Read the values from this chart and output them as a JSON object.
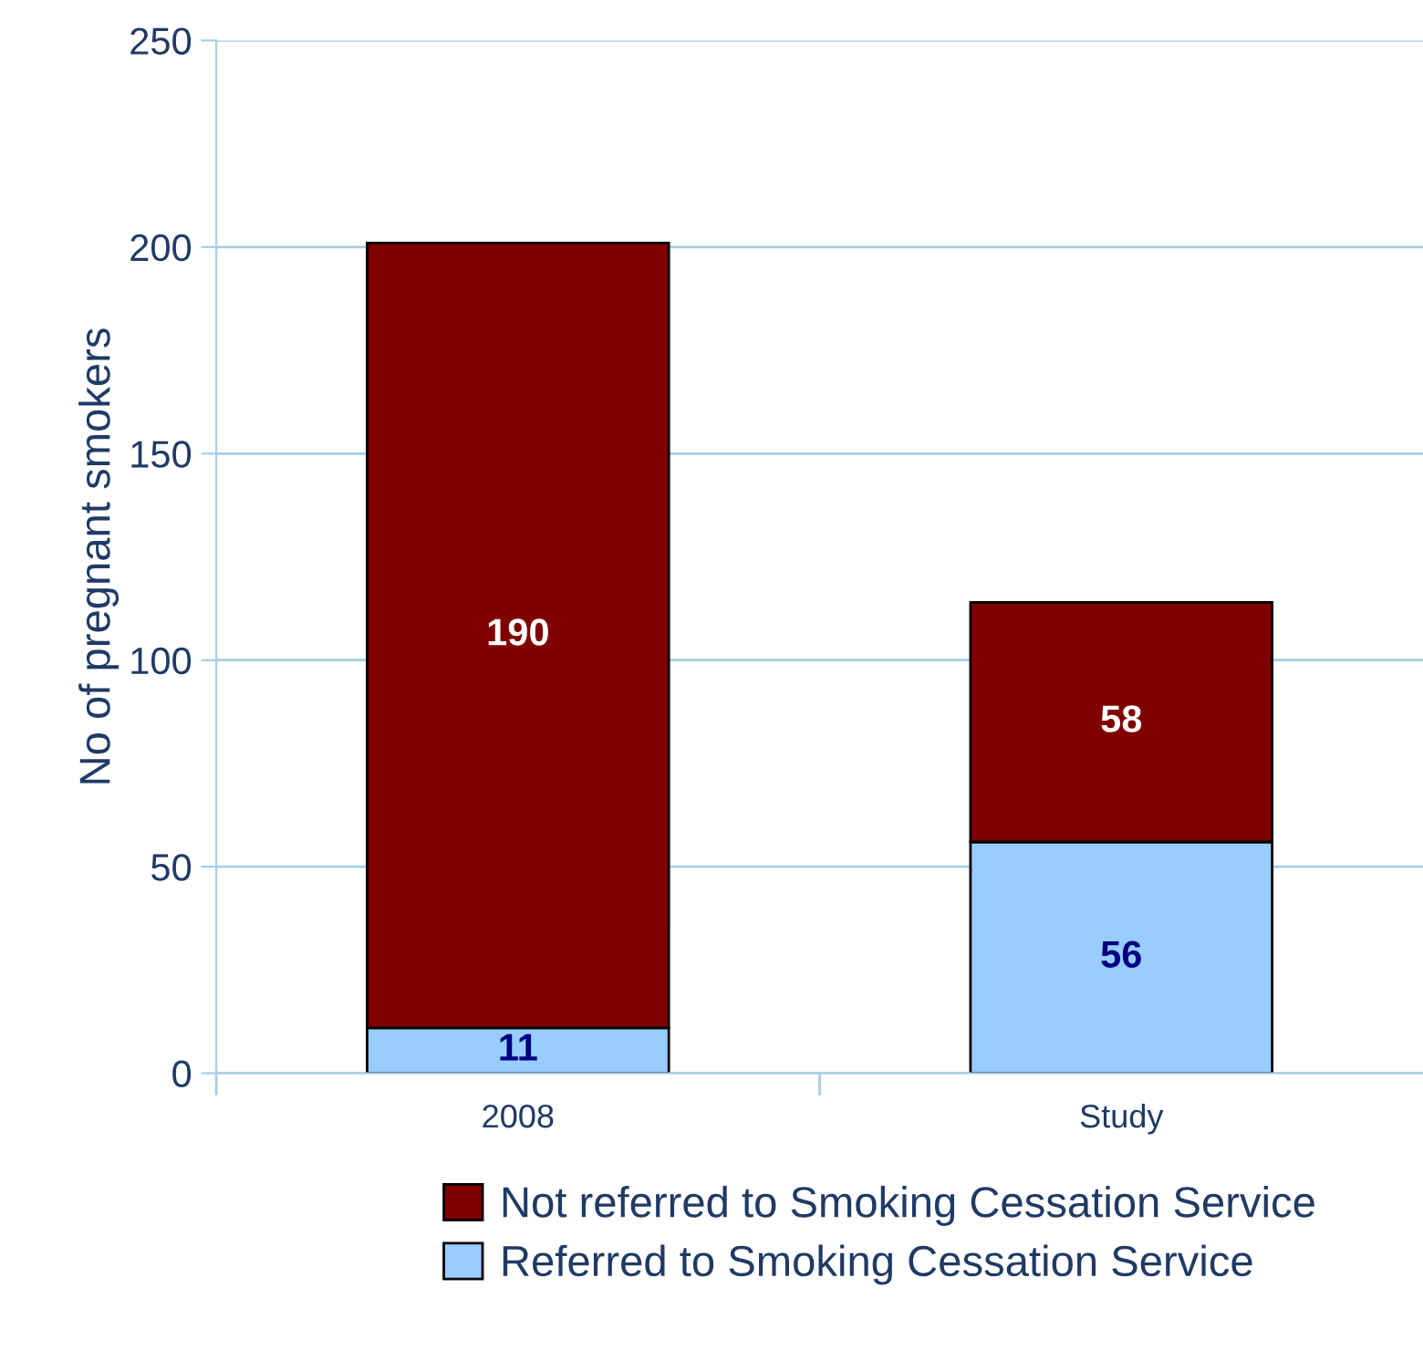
{
  "chart_data": {
    "type": "bar",
    "ylabel": "No of pregnant smokers",
    "categories": [
      "2008",
      "Study"
    ],
    "stacked": true,
    "series": [
      {
        "name": "Referred to Smoking Cessation Service",
        "color": "#99ccff",
        "values": [
          11,
          56
        ]
      },
      {
        "name": "Not referred to Smoking Cessation Service",
        "color": "#800000",
        "values": [
          190,
          58
        ]
      }
    ],
    "ylim": [
      0,
      250
    ],
    "yticks": [
      0,
      50,
      100,
      150,
      200,
      250
    ],
    "grid": "y",
    "legend": "bottom",
    "data_labels": true
  }
}
